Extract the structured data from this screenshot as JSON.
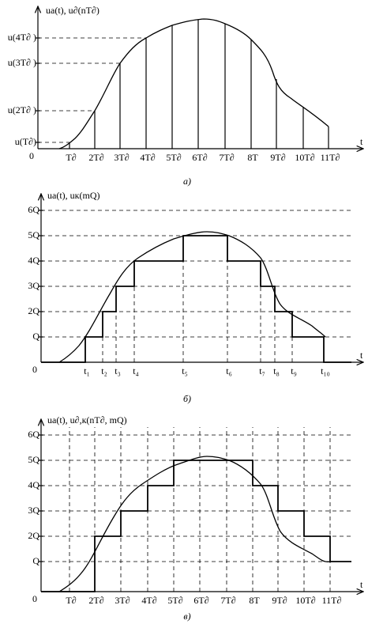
{
  "panels": [
    {
      "y_label": "uа(t), u∂(nT∂)",
      "x_label": "t",
      "origin": "0",
      "caption": "а)",
      "y_ticks": [
        "u(4T∂ )",
        "u(3T∂ )",
        "u(2T∂ )",
        "u(T∂)"
      ],
      "x_ticks": [
        "T∂",
        "2T∂",
        "3T∂",
        "4T∂",
        "5T∂",
        "6T∂",
        "7T∂",
        "8T",
        "9T∂",
        "10T∂",
        "11T∂"
      ]
    },
    {
      "y_label": "uа(t), uк(mQ)",
      "x_label": "t",
      "origin": "0",
      "caption": "б)",
      "y_ticks": [
        "6Q",
        "5Q",
        "4Q",
        "3Q",
        "2Q",
        "Q"
      ],
      "x_ticks": [
        "t₁",
        "t₂",
        "t₃",
        "t₄",
        "t₅",
        "t₆",
        "t₇",
        "t₈",
        "t₉",
        "t₁₀"
      ]
    },
    {
      "y_label": "uа(t), u∂,к(nT∂, mQ)",
      "x_label": "t",
      "origin": "0",
      "caption": "в)",
      "y_ticks": [
        "6Q",
        "5Q",
        "4Q",
        "3Q",
        "2Q",
        "Q"
      ],
      "x_ticks": [
        "T∂",
        "2T∂",
        "3T∂",
        "4T∂",
        "5T∂",
        "6T∂",
        "7T∂",
        "8T",
        "9T∂",
        "10T∂",
        "11T∂"
      ]
    }
  ]
}
